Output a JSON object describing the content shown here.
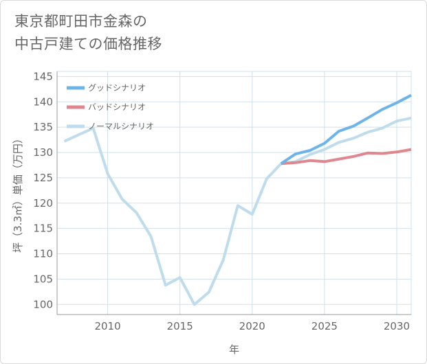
{
  "title": {
    "line1": "東京都町田市金森の",
    "line2": "中古戸建ての価格推移"
  },
  "colors": {
    "good": "#6cb4ea",
    "bad": "#e0868f",
    "normal": "#bfdcec",
    "grid": "#cfe0eb",
    "axis": "#999999",
    "text": "#666666"
  },
  "chart_data": {
    "type": "line",
    "xlabel": "年",
    "ylabel": "坪（3.3㎡）単価（万円）",
    "xlim": [
      2006.5,
      2031
    ],
    "ylim": [
      98,
      146
    ],
    "x_ticks": [
      2010,
      2015,
      2020,
      2025,
      2030
    ],
    "y_ticks": [
      100,
      105,
      110,
      115,
      120,
      125,
      130,
      135,
      140,
      145
    ],
    "grid": true,
    "legend_position": "top-left",
    "series": [
      {
        "name": "グッドシナリオ",
        "color": "#6cb4ea",
        "x": [
          2022,
          2023,
          2024,
          2025,
          2026,
          2027,
          2028,
          2029,
          2030,
          2031
        ],
        "y": [
          127.8,
          129.7,
          130.4,
          131.8,
          134.2,
          135.2,
          136.8,
          138.5,
          139.8,
          141.3
        ]
      },
      {
        "name": "バッドシナリオ",
        "color": "#e0868f",
        "x": [
          2022,
          2023,
          2024,
          2025,
          2026,
          2027,
          2028,
          2029,
          2030,
          2031
        ],
        "y": [
          127.8,
          128.0,
          128.4,
          128.2,
          128.7,
          129.2,
          129.9,
          129.8,
          130.1,
          130.6
        ]
      },
      {
        "name": "ノーマルシナリオ",
        "color": "#bfdcec",
        "x": [
          2007,
          2008,
          2009,
          2010,
          2011,
          2012,
          2013,
          2014,
          2015,
          2016,
          2017,
          2018,
          2019,
          2020,
          2021,
          2022,
          2023,
          2024,
          2025,
          2026,
          2027,
          2028,
          2029,
          2030,
          2031
        ],
        "y": [
          132.2,
          133.5,
          134.8,
          125.8,
          120.8,
          118.1,
          113.4,
          103.8,
          105.3,
          100.0,
          102.4,
          108.8,
          119.5,
          117.8,
          124.8,
          127.8,
          128.2,
          129.6,
          130.6,
          132.0,
          132.8,
          134.0,
          134.8,
          136.2,
          136.8
        ]
      }
    ]
  }
}
